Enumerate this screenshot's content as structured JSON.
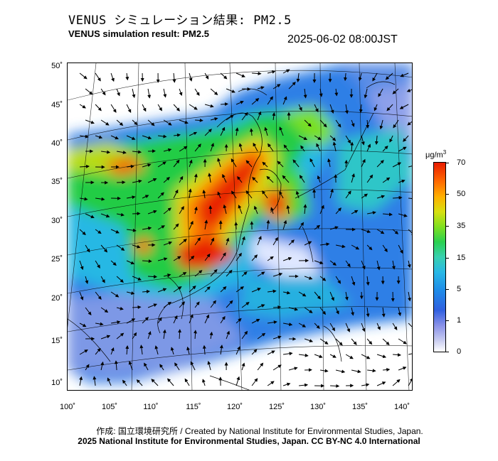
{
  "header": {
    "title_jp": "VENUS シミュレーション結果: PM2.5",
    "title_en": "VENUS simulation result: PM2.5",
    "timestamp": "2025-06-02 08:00JST"
  },
  "map": {
    "y_ticks": [
      "50˚",
      "45˚",
      "40˚",
      "35˚",
      "30˚",
      "25˚",
      "20˚",
      "15˚",
      "10˚"
    ],
    "x_ticks": [
      "100˚",
      "105˚",
      "110˚",
      "115˚",
      "120˚",
      "125˚",
      "130˚",
      "135˚",
      "140˚"
    ]
  },
  "colorbar": {
    "unit": "μg/m",
    "unit_sup": "3",
    "ticks": [
      "70",
      "50",
      "35",
      "15",
      "5",
      "1",
      "0"
    ],
    "colors": {
      "low": "#ffffff",
      "blue": "#3060e0",
      "cyan": "#29b8e6",
      "green": "#2ad050",
      "yellow": "#d8e010",
      "orange": "#ff6a00",
      "red": "#e81c00"
    }
  },
  "footer": {
    "credit_line": "作成: 国立環境研究所 / Created by National Institute for Environmental Studies, Japan.",
    "copyright_line": "2025 National Institute for Environmental Studies, Japan. CC BY-NC 4.0 International"
  }
}
